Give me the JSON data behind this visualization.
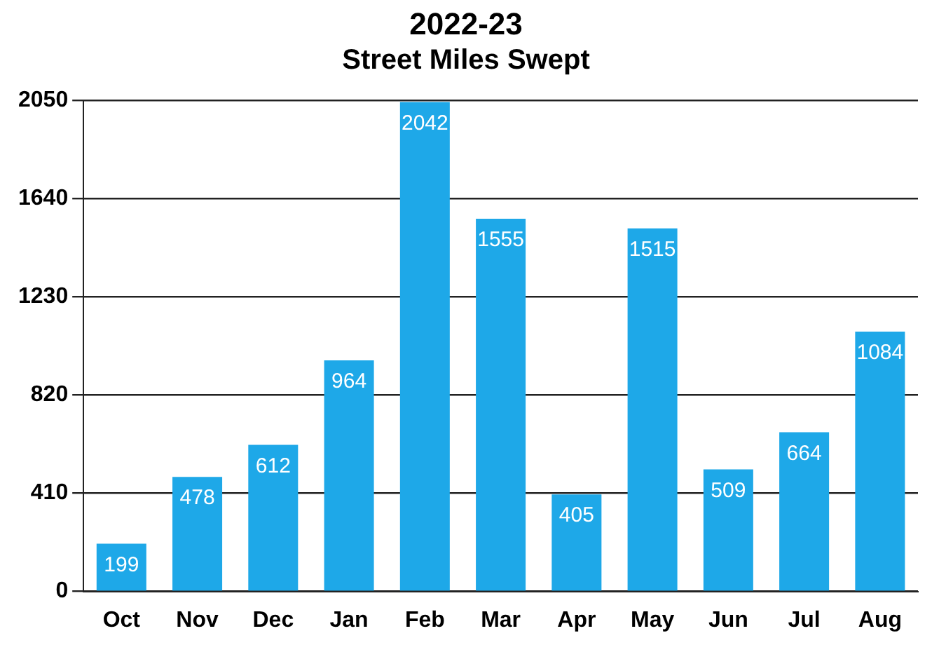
{
  "chart_data": {
    "type": "bar",
    "title": "2022-23",
    "subtitle": "Street Miles Swept",
    "categories": [
      "Oct",
      "Nov",
      "Dec",
      "Jan",
      "Feb",
      "Mar",
      "Apr",
      "May",
      "Jun",
      "Jul",
      "Aug"
    ],
    "values": [
      199,
      478,
      612,
      964,
      2042,
      1555,
      405,
      1515,
      509,
      664,
      1084
    ],
    "color": "#1ea8e8",
    "ylim": [
      0,
      2050
    ],
    "yticks": [
      0,
      410,
      820,
      1230,
      1640,
      2050
    ],
    "grid": "y",
    "data_labels": true
  }
}
